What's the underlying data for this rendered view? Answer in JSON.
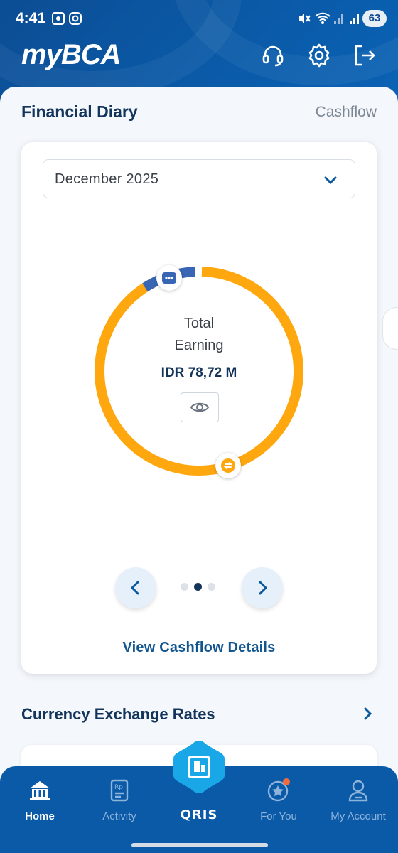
{
  "status_bar": {
    "time": "4:41",
    "battery": "63"
  },
  "header": {
    "logo_prefix": "my",
    "logo_brand": "BCA",
    "icons": [
      "headset-icon",
      "gear-icon",
      "logout-icon"
    ]
  },
  "financial_diary": {
    "title": "Financial Diary",
    "tab_link": "Cashflow",
    "month": "December 2025",
    "donut": {
      "label_line1": "Total",
      "label_line2": "Earning",
      "amount": "IDR 78,72 M",
      "colors": {
        "primary": "#FFA70F",
        "secondary": "#3866B5"
      }
    },
    "pager": {
      "count": 3,
      "active": 1
    },
    "details_link": "View Cashflow Details"
  },
  "currency": {
    "title": "Currency Exchange Rates"
  },
  "bottom_nav": {
    "items": [
      {
        "label": "Home",
        "icon": "home-icon",
        "active": true
      },
      {
        "label": "Activity",
        "icon": "activity-icon",
        "active": false
      },
      {
        "label": "QRIS",
        "icon": "qris-icon",
        "active": false
      },
      {
        "label": "For You",
        "icon": "star-icon",
        "active": false
      },
      {
        "label": "My Account",
        "icon": "account-icon",
        "active": false
      }
    ]
  }
}
